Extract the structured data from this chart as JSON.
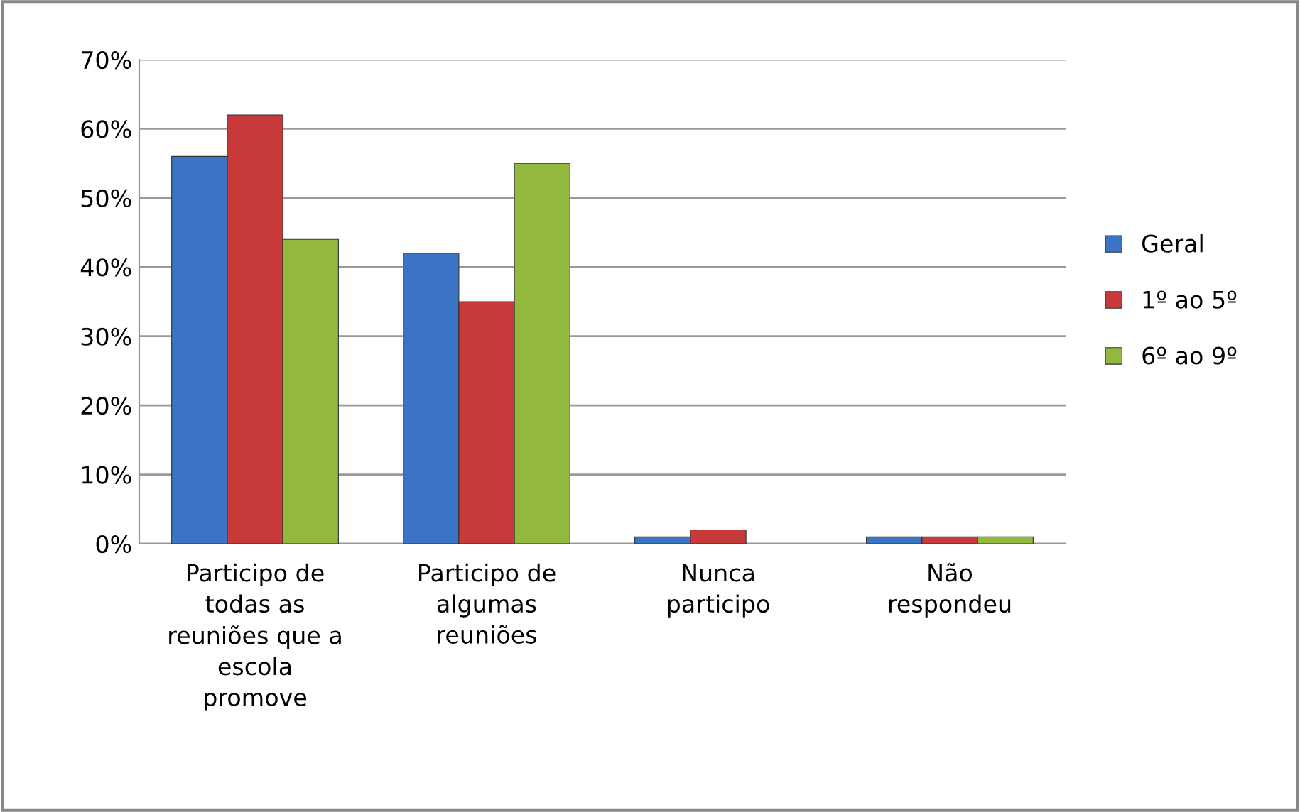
{
  "chart_data": {
    "type": "bar",
    "categories": [
      "Participo de\ntodas as\nreuniões que a\nescola\npromove",
      "Participo de\nalgumas\nreuniões",
      "Nunca\nparticipo",
      "Não\nrespondeu"
    ],
    "series": [
      {
        "name": "Geral",
        "color": "#3b74c4",
        "values": [
          56,
          42,
          1,
          1
        ]
      },
      {
        "name": "1º ao 5º",
        "color": "#c8393a",
        "values": [
          62,
          35,
          2,
          1
        ]
      },
      {
        "name": "6º ao 9º",
        "color": "#93b83e",
        "values": [
          44,
          55,
          null,
          1
        ]
      }
    ],
    "ylim": [
      0,
      70
    ],
    "yticks": [
      {
        "value": 0,
        "label": "0%"
      },
      {
        "value": 10,
        "label": "10%"
      },
      {
        "value": 20,
        "label": "20%"
      },
      {
        "value": 30,
        "label": "30%"
      },
      {
        "value": 40,
        "label": "40%"
      },
      {
        "value": 50,
        "label": "50%"
      },
      {
        "value": 60,
        "label": "60%"
      },
      {
        "value": 70,
        "label": "70%"
      }
    ],
    "grid": "y",
    "legend": "right"
  }
}
